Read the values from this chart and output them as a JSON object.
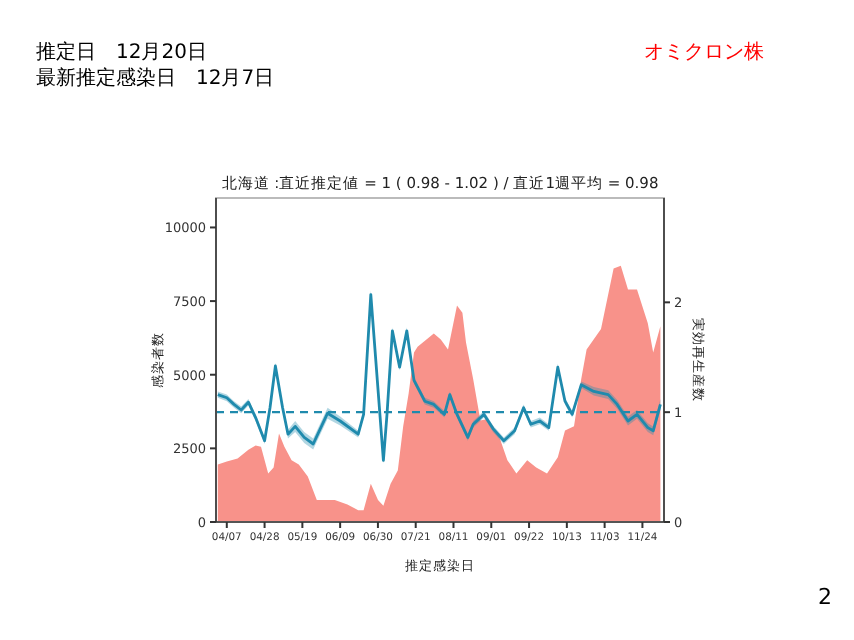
{
  "chart_data": {
    "type": "area",
    "title": "北海道 :直近推定値 = 1 ( 0.98 - 1.02 ) / 直近1週平均 = 0.98",
    "xlabel": "推定感染日",
    "ylabel": "感染者数",
    "y2label": "実効再生産数",
    "annotations": [
      "推定日　12月20日",
      "最新推定感染日　12月7日",
      "オミクロン株",
      "2"
    ],
    "xlim": [
      "--04-01",
      "--12-06"
    ],
    "xticks": [
      {
        "value": "--04-07",
        "label": "04/07"
      },
      {
        "value": "--04-28",
        "label": "04/28"
      },
      {
        "value": "--05-19",
        "label": "05/19"
      },
      {
        "value": "--06-09",
        "label": "06/09"
      },
      {
        "value": "--06-30",
        "label": "06/30"
      },
      {
        "value": "--07-21",
        "label": "07/21"
      },
      {
        "value": "--08-11",
        "label": "08/11"
      },
      {
        "value": "--09-01",
        "label": "09/01"
      },
      {
        "value": "--09-22",
        "label": "09/22"
      },
      {
        "value": "--10-13",
        "label": "10/13"
      },
      {
        "value": "--11-03",
        "label": "11/03"
      },
      {
        "value": "--11-24",
        "label": "11/24"
      }
    ],
    "ylim": [
      0,
      11000
    ],
    "yticks": [
      0,
      2500,
      5000,
      7500,
      10000
    ],
    "y2lim": [
      0,
      2.95
    ],
    "y2ticks": [
      0,
      1,
      2
    ],
    "ref_lines": [
      {
        "axis": "y2",
        "value": 1,
        "color": "#1f8aad",
        "line_style": "dashed"
      }
    ],
    "series": [
      {
        "color": "#f8928a",
        "x": [
          "--04-02",
          "--04-07",
          "--04-13",
          "--04-19",
          "--04-23",
          "--04-26",
          "--04-30",
          "--05-03",
          "--05-06",
          "--05-09",
          "--05-13",
          "--05-17",
          "--05-22",
          "--05-27",
          "--05-31",
          "--06-06",
          "--06-13",
          "--06-19",
          "--06-22",
          "--06-26",
          "--06-30",
          "--07-03",
          "--07-07",
          "--07-11",
          "--07-14",
          "--07-17",
          "--07-20",
          "--07-22",
          "--07-31",
          "--08-04",
          "--08-08",
          "--08-13",
          "--08-16",
          "--08-18",
          "--08-22",
          "--08-26",
          "--08-30",
          "--09-02",
          "--09-06",
          "--09-10",
          "--09-15",
          "--09-21",
          "--09-26",
          "--10-02",
          "--10-08",
          "--10-12",
          "--10-17",
          "--10-21",
          "--10-24",
          "--11-01",
          "--11-08",
          "--11-12",
          "--11-16",
          "--11-21",
          "--11-27",
          "--11-30",
          "--12-04"
        ],
        "values": [
          1950,
          2050,
          2150,
          2450,
          2600,
          2550,
          1650,
          1850,
          3000,
          2550,
          2100,
          1950,
          1550,
          750,
          750,
          750,
          600,
          400,
          400,
          1300,
          750,
          550,
          1300,
          1750,
          3250,
          4350,
          5750,
          5950,
          6400,
          6200,
          5850,
          7350,
          7100,
          6100,
          4850,
          3450,
          3500,
          3250,
          2800,
          2100,
          1650,
          2100,
          1850,
          1650,
          2200,
          3100,
          3250,
          4850,
          5850,
          6550,
          8600,
          8700,
          7900,
          7900,
          6750,
          5750,
          6650
        ]
      },
      {
        "type": "line",
        "axis": "y2",
        "color": "#1f8aad",
        "x": [
          "--04-02",
          "--04-07",
          "--04-11",
          "--04-15",
          "--04-19",
          "--04-23",
          "--04-28",
          "--05-01",
          "--05-04",
          "--05-08",
          "--05-11",
          "--05-15",
          "--05-20",
          "--05-25",
          "--06-02",
          "--06-09",
          "--06-19",
          "--06-22",
          "--06-26",
          "--07-03",
          "--07-05",
          "--07-08",
          "--07-12",
          "--07-16",
          "--07-20",
          "--07-26",
          "--07-31",
          "--08-06",
          "--08-09",
          "--08-13",
          "--08-19",
          "--08-22",
          "--08-28",
          "--09-02",
          "--09-08",
          "--09-14",
          "--09-19",
          "--09-23",
          "--09-28",
          "--10-03",
          "--10-08",
          "--10-12",
          "--10-16",
          "--10-21",
          "--10-28",
          "--11-05",
          "--11-10",
          "--11-16",
          "--11-21",
          "--11-27",
          "--11-30",
          "--12-04"
        ],
        "values": [
          1.16,
          1.13,
          1.07,
          1.02,
          1.09,
          0.95,
          0.74,
          1.04,
          1.42,
          1.04,
          0.8,
          0.87,
          0.77,
          0.71,
          0.99,
          0.92,
          0.8,
          0.98,
          2.07,
          0.56,
          0.98,
          1.74,
          1.41,
          1.74,
          1.29,
          1.1,
          1.07,
          0.98,
          1.16,
          0.98,
          0.77,
          0.89,
          0.98,
          0.85,
          0.74,
          0.83,
          1.04,
          0.89,
          0.92,
          0.86,
          1.41,
          1.1,
          0.98,
          1.25,
          1.19,
          1.16,
          1.07,
          0.92,
          0.98,
          0.86,
          0.83,
          1.07
        ],
        "lower": [
          1.13,
          1.1,
          1.04,
          0.99,
          1.06,
          0.92,
          0.71,
          1.01,
          1.39,
          1.01,
          0.76,
          0.82,
          0.72,
          0.66,
          0.94,
          0.88,
          0.77,
          0.95,
          2.03,
          0.53,
          0.95,
          1.71,
          1.38,
          1.71,
          1.26,
          1.07,
          1.04,
          0.95,
          1.13,
          0.95,
          0.74,
          0.86,
          0.95,
          0.82,
          0.71,
          0.8,
          1.01,
          0.86,
          0.89,
          0.83,
          1.38,
          1.07,
          0.95,
          1.22,
          1.15,
          1.12,
          1.03,
          0.88,
          0.94,
          0.82,
          0.79,
          1.02
        ],
        "upper": [
          1.19,
          1.16,
          1.1,
          1.05,
          1.12,
          0.98,
          0.77,
          1.07,
          1.45,
          1.07,
          0.84,
          0.92,
          0.82,
          0.76,
          1.04,
          0.96,
          0.83,
          1.01,
          2.11,
          0.59,
          1.01,
          1.77,
          1.44,
          1.77,
          1.32,
          1.13,
          1.1,
          1.01,
          1.19,
          1.01,
          0.8,
          0.92,
          1.01,
          0.88,
          0.77,
          0.86,
          1.07,
          0.92,
          0.95,
          0.89,
          1.44,
          1.13,
          1.01,
          1.28,
          1.23,
          1.2,
          1.11,
          0.96,
          1.02,
          0.9,
          0.87,
          1.12
        ]
      }
    ]
  }
}
